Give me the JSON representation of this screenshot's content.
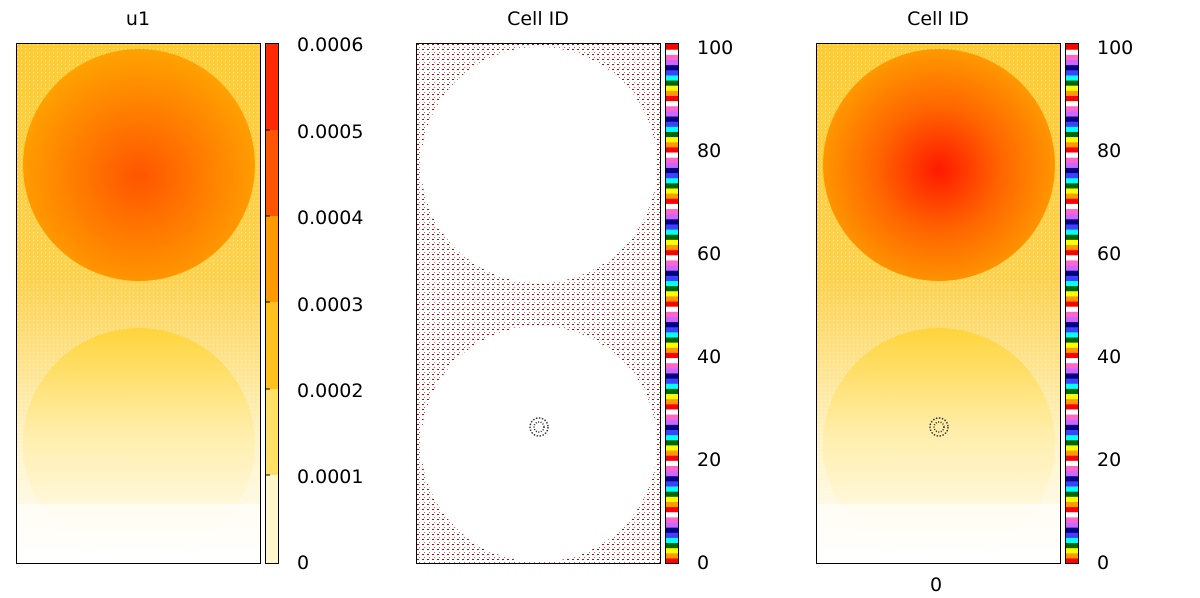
{
  "chart_data": [
    {
      "type": "heatmap",
      "title": "u1",
      "xlabel": "",
      "ylabel": "",
      "colorbar": {
        "ticks": [
          "0",
          "0.0001",
          "0.0002",
          "0.0003",
          "0.0004",
          "0.0005",
          "0.0006"
        ],
        "range": [
          0,
          0.0006
        ],
        "colors": [
          "#ffffff",
          "#ffe680",
          "#ffcc33",
          "#ffaa00",
          "#ff8000",
          "#ff5500",
          "#ff2a00"
        ]
      },
      "features": [
        {
          "shape": "disk",
          "position": "upper",
          "peak_value": 0.00055
        },
        {
          "shape": "disk",
          "position": "lower",
          "peak_value": 0.00025
        }
      ]
    },
    {
      "type": "heatmap",
      "title": "Cell ID",
      "xlabel": "",
      "ylabel": "",
      "colorbar": {
        "ticks": [
          "0",
          "20",
          "40",
          "60",
          "80",
          "100"
        ],
        "range": [
          0,
          100
        ],
        "palette": [
          "#ff0000",
          "#ff9900",
          "#ffff00",
          "#006400",
          "#00ffff",
          "#4040ff",
          "#000080",
          "#cc66ff",
          "#ff66cc",
          "#ffffff"
        ]
      },
      "features": [
        {
          "shape": "disk",
          "position": "upper",
          "fill": "empty"
        },
        {
          "shape": "disk",
          "position": "lower",
          "fill": "empty"
        },
        {
          "shape": "cell-cluster",
          "position": "lower-center"
        }
      ]
    },
    {
      "type": "heatmap",
      "title": "Cell ID",
      "xlabel": "",
      "ylabel": "",
      "xticks": [
        "0"
      ],
      "colorbar": {
        "ticks": [
          "0",
          "20",
          "40",
          "60",
          "80",
          "100"
        ],
        "range": [
          0,
          100
        ],
        "palette": [
          "#ff0000",
          "#ff9900",
          "#ffff00",
          "#006400",
          "#00ffff",
          "#4040ff",
          "#000080",
          "#cc66ff",
          "#ff66cc",
          "#ffffff"
        ]
      },
      "features": [
        {
          "shape": "disk",
          "position": "upper",
          "peak_value": 0.00058
        },
        {
          "shape": "disk",
          "position": "lower",
          "peak_value": 0.00025
        },
        {
          "shape": "cell-cluster",
          "position": "lower-center"
        }
      ]
    }
  ]
}
